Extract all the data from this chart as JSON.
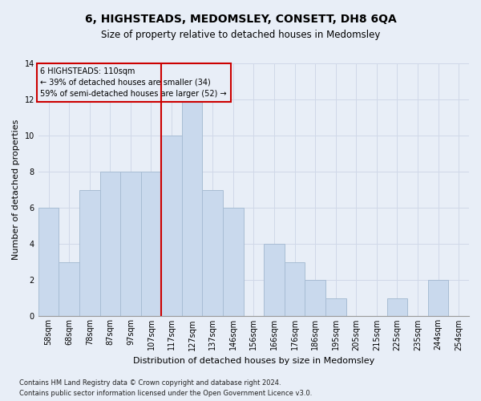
{
  "title_line1": "6, HIGHSTEADS, MEDOMSLEY, CONSETT, DH8 6QA",
  "title_line2": "Size of property relative to detached houses in Medomsley",
  "xlabel": "Distribution of detached houses by size in Medomsley",
  "ylabel": "Number of detached properties",
  "footnote1": "Contains HM Land Registry data © Crown copyright and database right 2024.",
  "footnote2": "Contains public sector information licensed under the Open Government Licence v3.0.",
  "annotation_line1": "6 HIGHSTEADS: 110sqm",
  "annotation_line2": "← 39% of detached houses are smaller (34)",
  "annotation_line3": "59% of semi-detached houses are larger (52) →",
  "bar_labels": [
    "58sqm",
    "68sqm",
    "78sqm",
    "87sqm",
    "97sqm",
    "107sqm",
    "117sqm",
    "127sqm",
    "137sqm",
    "146sqm",
    "156sqm",
    "166sqm",
    "176sqm",
    "186sqm",
    "195sqm",
    "205sqm",
    "215sqm",
    "225sqm",
    "235sqm",
    "244sqm",
    "254sqm"
  ],
  "bar_values": [
    6,
    3,
    7,
    8,
    8,
    8,
    10,
    12,
    7,
    6,
    0,
    4,
    3,
    2,
    1,
    0,
    0,
    1,
    0,
    2,
    0
  ],
  "bar_color": "#c9d9ed",
  "bar_edge_color": "#a8bdd4",
  "vline_x_index": 6,
  "vline_color": "#cc0000",
  "grid_color": "#d0d8e8",
  "ylim": [
    0,
    14
  ],
  "yticks": [
    0,
    2,
    4,
    6,
    8,
    10,
    12,
    14
  ],
  "annotation_box_color": "#cc0000",
  "bg_color": "#e8eef7",
  "title_fontsize": 10,
  "subtitle_fontsize": 8.5,
  "ylabel_fontsize": 8,
  "xlabel_fontsize": 8,
  "tick_fontsize": 7,
  "footnote_fontsize": 6,
  "annotation_fontsize": 7
}
